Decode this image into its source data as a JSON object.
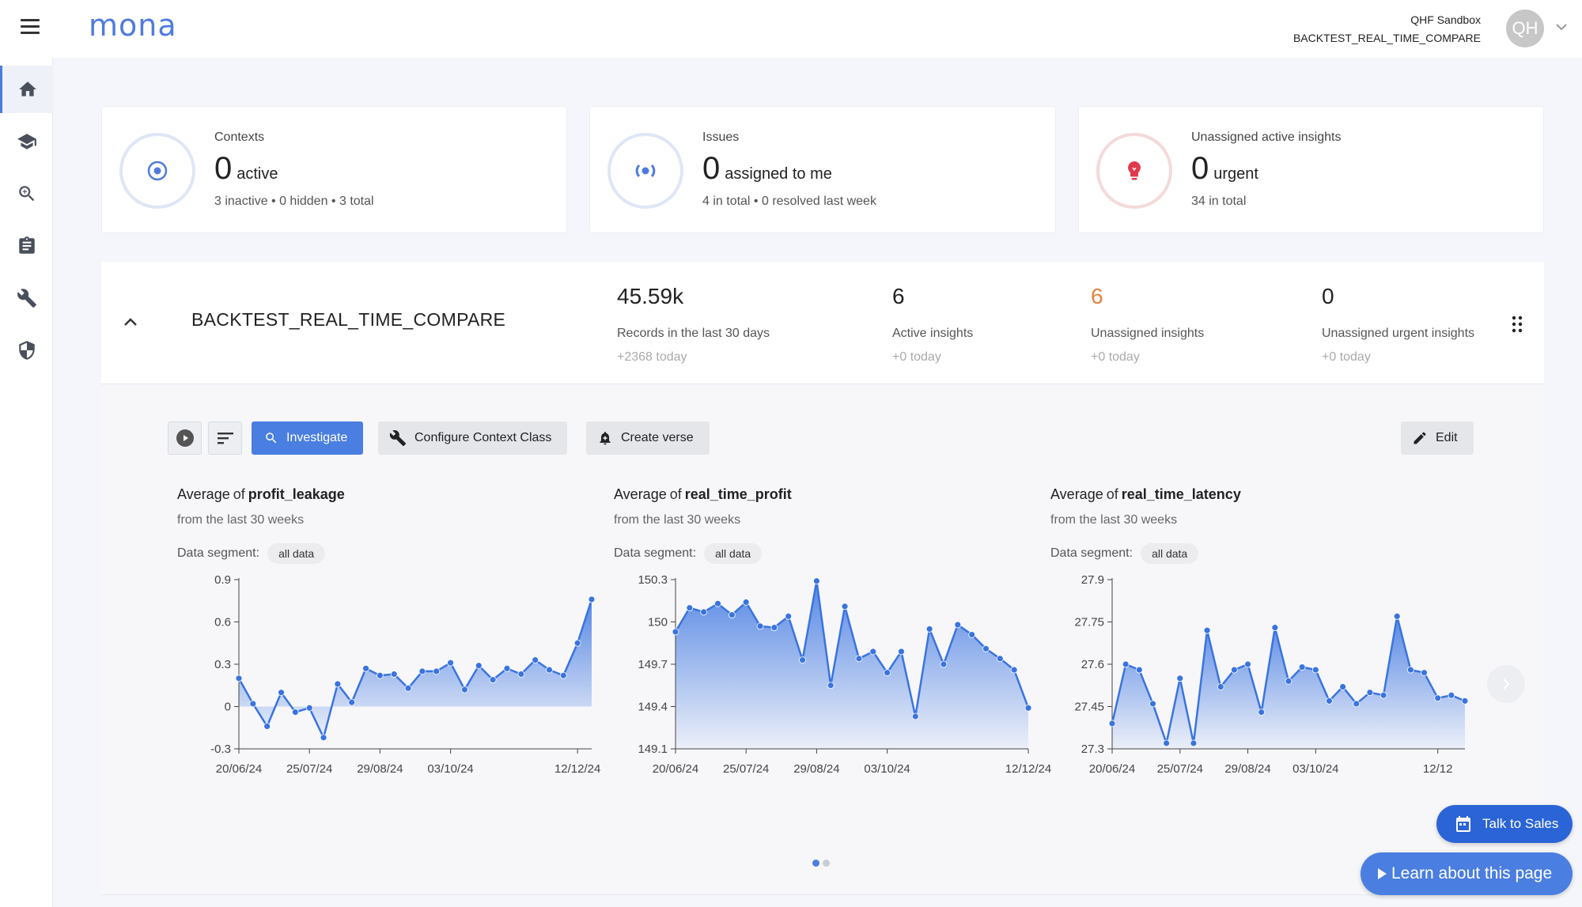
{
  "app": {
    "logo": "mona"
  },
  "account": {
    "org": "QHF Sandbox",
    "context": "BACKTEST_REAL_TIME_COMPARE",
    "initials": "QH"
  },
  "sidebar": {
    "items": [
      {
        "icon": "home-icon",
        "active": true
      },
      {
        "icon": "graduation-cap-icon",
        "active": false
      },
      {
        "icon": "zoom-search-icon",
        "active": false
      },
      {
        "icon": "clipboard-icon",
        "active": false
      },
      {
        "icon": "wrench-icon",
        "active": false
      },
      {
        "icon": "shield-icon",
        "active": false
      }
    ]
  },
  "summary": {
    "contexts": {
      "title": "Contexts",
      "value": "0",
      "unit": "active",
      "sub": "3 inactive • 0 hidden • 3 total"
    },
    "issues": {
      "title": "Issues",
      "value": "0",
      "unit": "assigned to me",
      "sub": "4 in total • 0 resolved last week"
    },
    "insights": {
      "title": "Unassigned active insights",
      "value": "0",
      "unit": "urgent",
      "sub": "34 in total"
    }
  },
  "context": {
    "name": "BACKTEST_REAL_TIME_COMPARE",
    "stats": [
      {
        "value": "45.59k",
        "label": "Records in the last 30 days",
        "delta": "+2368 today"
      },
      {
        "value": "6",
        "label": "Active insights",
        "delta": "+0 today"
      },
      {
        "value": "6",
        "label": "Unassigned insights",
        "delta": "+0 today"
      },
      {
        "value": "0",
        "label": "Unassigned urgent insights",
        "delta": "+0 today"
      }
    ]
  },
  "toolbar": {
    "investigate": "Investigate",
    "configure": "Configure Context Class",
    "create_verse": "Create verse",
    "edit": "Edit"
  },
  "colors": {
    "accent": "#4a7ee0",
    "orange": "#e1833c",
    "line": "#3a74e0"
  },
  "floating": {
    "talk_sales": "Talk to Sales",
    "learn": "Learn about this page"
  },
  "chart_data": [
    {
      "type": "area",
      "agg": "Average",
      "of": "of",
      "metric": "profit_leakage",
      "subtitle": "from the last 30 weeks",
      "segment_label": "Data segment:",
      "segment": "all data",
      "ylim": [
        -0.3,
        0.9
      ],
      "yticks": [
        "0.9",
        "0.6",
        "0.3",
        "0",
        "-0.3"
      ],
      "ytick_values": [
        0.9,
        0.6,
        0.3,
        0,
        -0.3
      ],
      "xtick_labels": [
        "20/06/24",
        "25/07/24",
        "29/08/24",
        "03/10/24",
        "12/12/24"
      ],
      "xtick_index": [
        0,
        5,
        10,
        15,
        24
      ],
      "values": [
        0.2,
        0.02,
        -0.14,
        0.1,
        -0.04,
        -0.01,
        -0.22,
        0.16,
        0.03,
        0.27,
        0.22,
        0.23,
        0.13,
        0.25,
        0.25,
        0.31,
        0.12,
        0.29,
        0.19,
        0.27,
        0.23,
        0.33,
        0.26,
        0.22,
        0.45,
        0.76
      ]
    },
    {
      "type": "area",
      "agg": "Average",
      "of": "of",
      "metric": "real_time_profit",
      "subtitle": "from the last 30 weeks",
      "segment_label": "Data segment:",
      "segment": "all data",
      "ylim": [
        149.1,
        150.3
      ],
      "yticks": [
        "150.3",
        "150",
        "149.7",
        "149.4",
        "149.1"
      ],
      "ytick_values": [
        150.3,
        150,
        149.7,
        149.4,
        149.1
      ],
      "xtick_labels": [
        "20/06/24",
        "25/07/24",
        "29/08/24",
        "03/10/24",
        "12/12/24"
      ],
      "xtick_index": [
        0,
        5,
        10,
        15,
        25
      ],
      "values": [
        149.93,
        150.1,
        150.07,
        150.13,
        150.05,
        150.14,
        149.97,
        149.96,
        150.04,
        149.73,
        150.29,
        149.55,
        150.11,
        149.74,
        149.79,
        149.64,
        149.79,
        149.33,
        149.95,
        149.7,
        149.98,
        149.91,
        149.81,
        149.74,
        149.66,
        149.39
      ]
    },
    {
      "type": "area",
      "agg": "Average",
      "of": "of",
      "metric": "real_time_latency",
      "subtitle": "from the last 30 weeks",
      "segment_label": "Data segment:",
      "segment": "all data",
      "ylim": [
        27.3,
        27.9
      ],
      "yticks": [
        "27.9",
        "27.75",
        "27.6",
        "27.45",
        "27.3"
      ],
      "ytick_values": [
        27.9,
        27.75,
        27.6,
        27.45,
        27.3
      ],
      "xtick_labels": [
        "20/06/24",
        "25/07/24",
        "29/08/24",
        "03/10/24",
        "12/12"
      ],
      "xtick_index": [
        0,
        5,
        10,
        15,
        24
      ],
      "values": [
        27.39,
        27.6,
        27.58,
        27.46,
        27.32,
        27.55,
        27.32,
        27.72,
        27.52,
        27.58,
        27.6,
        27.43,
        27.73,
        27.54,
        27.59,
        27.58,
        27.47,
        27.52,
        27.46,
        27.5,
        27.49,
        27.77,
        27.58,
        27.57,
        27.48,
        27.49,
        27.47
      ]
    }
  ]
}
